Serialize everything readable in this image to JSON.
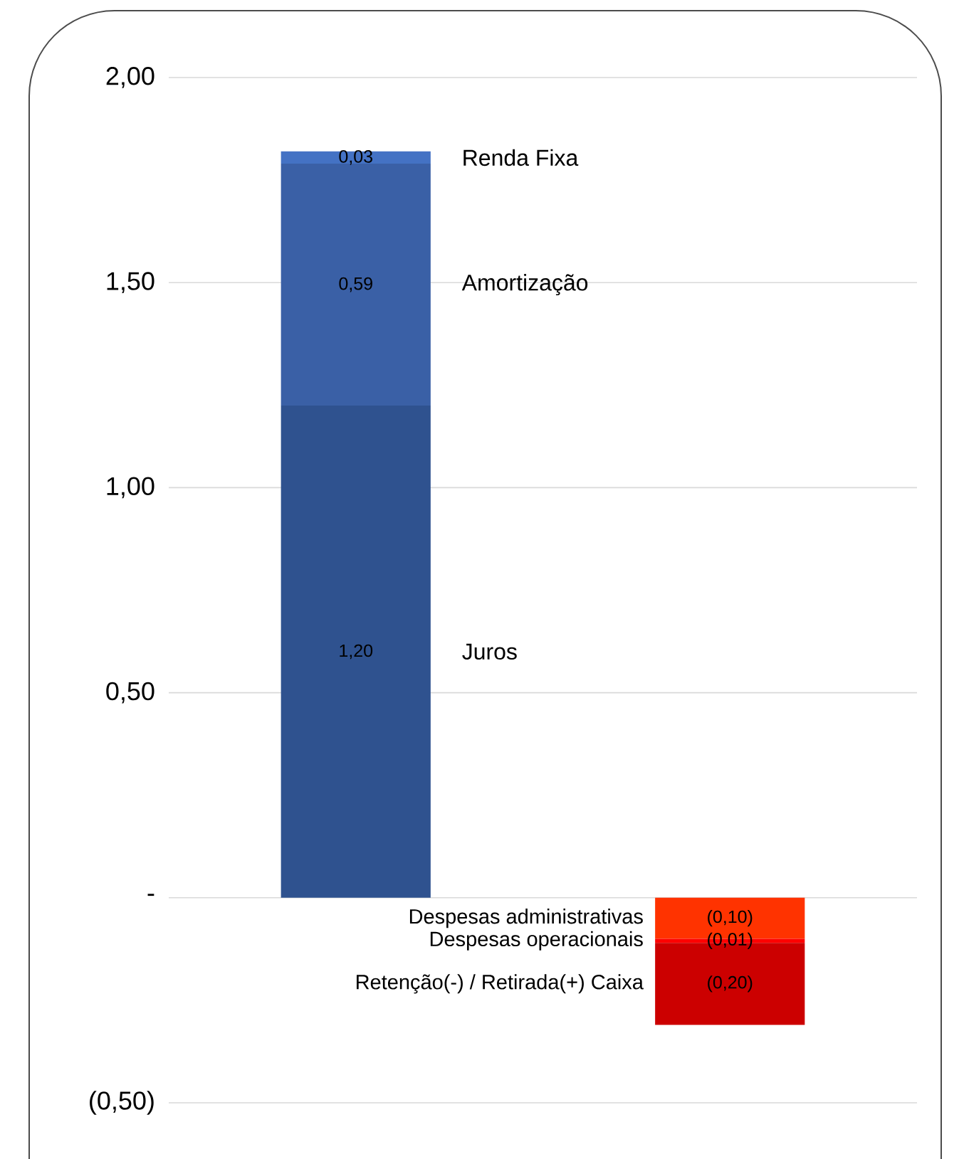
{
  "chart_data": {
    "type": "bar",
    "stacked": true,
    "categories": [
      null,
      null
    ],
    "series": [
      {
        "name": "Juros",
        "color": "#2f528f",
        "values": [
          1.2,
          null
        ],
        "value_labels": [
          "1,20",
          null
        ]
      },
      {
        "name": "Amortização",
        "color": "#3a60a6",
        "values": [
          0.59,
          null
        ],
        "value_labels": [
          "0,59",
          null
        ]
      },
      {
        "name": "Renda Fixa",
        "color": "#4472c4",
        "values": [
          0.03,
          null
        ],
        "value_labels": [
          "0,03",
          null
        ]
      },
      {
        "name": "Despesas administrativas",
        "color": "#ff3300",
        "values": [
          null,
          -0.1
        ],
        "value_labels": [
          null,
          "(0,10)"
        ]
      },
      {
        "name": "Despesas operacionais",
        "color": "#ff0000",
        "values": [
          null,
          -0.01
        ],
        "value_labels": [
          null,
          "(0,01)"
        ]
      },
      {
        "name": "Retenção(-) / Retirada(+) Caixa",
        "color": "#cc0000",
        "values": [
          null,
          -0.2
        ],
        "value_labels": [
          null,
          "(0,20)"
        ]
      }
    ],
    "ylim": [
      -0.5,
      2.0
    ],
    "yticks": [
      {
        "value": -0.5,
        "label": "(0,50)"
      },
      {
        "value": 0,
        "label": "-"
      },
      {
        "value": 0.5,
        "label": "0,50"
      },
      {
        "value": 1.0,
        "label": "1,00"
      },
      {
        "value": 1.5,
        "label": "1,50"
      },
      {
        "value": 2.0,
        "label": "2,00"
      }
    ],
    "grid": "y"
  }
}
